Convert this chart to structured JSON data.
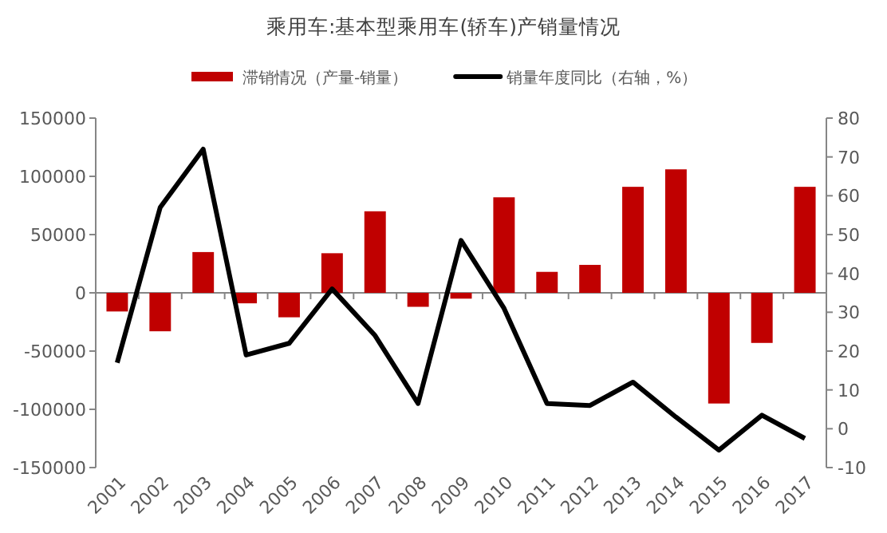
{
  "chart_data": {
    "type": "bar",
    "title": "乘用车:基本型乘用车(轿车)产销量情况",
    "categories": [
      "2001",
      "2002",
      "2003",
      "2004",
      "2005",
      "2006",
      "2007",
      "2008",
      "2009",
      "2010",
      "2011",
      "2012",
      "2013",
      "2014",
      "2015",
      "2016",
      "2017"
    ],
    "series": [
      {
        "name": "滞销情况（产量-销量）",
        "color": "#c00000",
        "values": [
          -16000,
          -33000,
          35000,
          -9000,
          -21000,
          34000,
          70000,
          -12000,
          -5000,
          82000,
          18000,
          24000,
          91000,
          106000,
          -95000,
          -43000,
          91000
        ]
      },
      {
        "name": "销量年度同比（右轴，%）",
        "type": "line",
        "axis": "y2",
        "color": "#000000",
        "values": [
          17,
          57,
          72,
          19,
          22,
          36,
          24,
          6.5,
          48.5,
          31,
          6.5,
          6,
          12,
          3,
          -5.5,
          3.5,
          -2.5
        ]
      }
    ],
    "ylim": [
      -150000,
      150000
    ],
    "yticks": [
      -150000,
      -100000,
      -50000,
      0,
      50000,
      100000,
      150000
    ],
    "y2lim": [
      -10,
      80
    ],
    "y2ticks": [
      -10,
      0,
      10,
      20,
      30,
      40,
      50,
      60,
      70,
      80
    ],
    "legend": "top"
  }
}
